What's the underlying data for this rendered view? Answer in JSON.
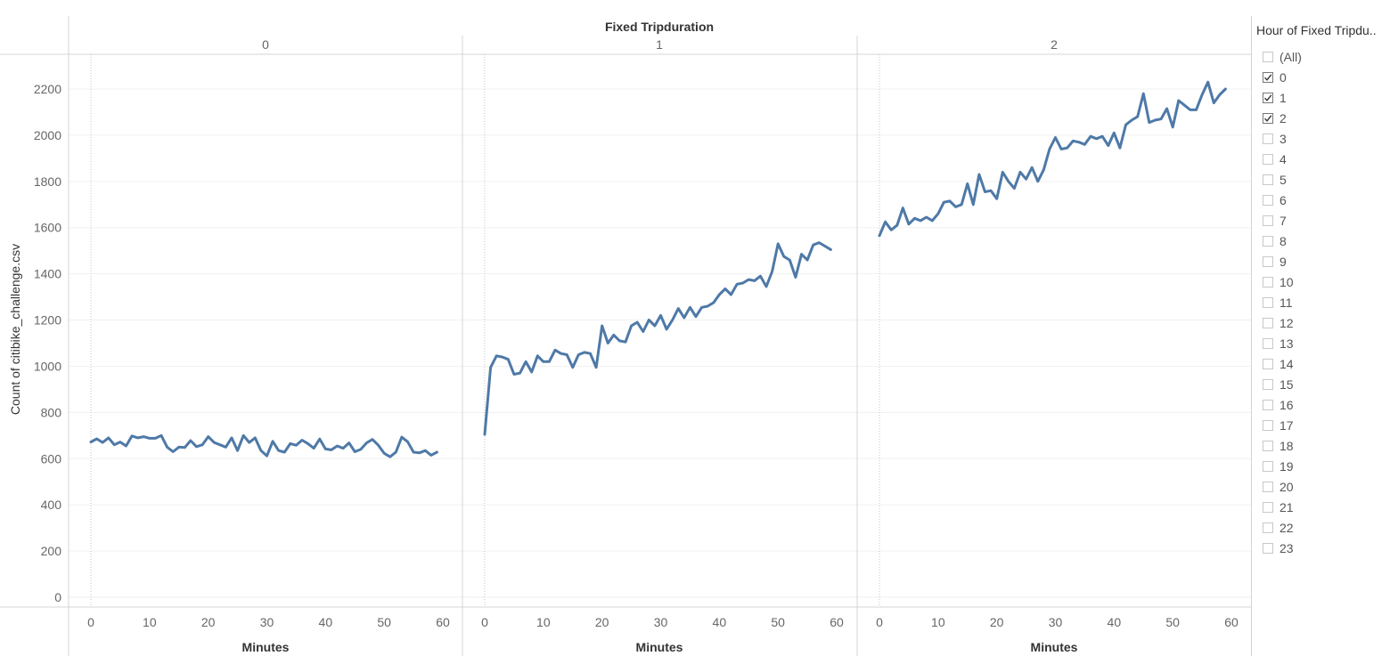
{
  "chart_data": {
    "type": "line",
    "column_header_title": "Fixed Tripduration",
    "ylabel": "Count of citibike_challenge.csv",
    "xlabel": "Minutes",
    "ylim": [
      0,
      2300
    ],
    "yticks": [
      0,
      200,
      400,
      600,
      800,
      1000,
      1200,
      1400,
      1600,
      1800,
      2000,
      2200
    ],
    "xlim": [
      -4,
      60
    ],
    "xticks": [
      0,
      10,
      20,
      30,
      40,
      50,
      60
    ],
    "line_color": "#4e79a7",
    "grid": true,
    "panels": [
      {
        "header": "0",
        "x": [
          0,
          1,
          2,
          3,
          4,
          5,
          6,
          7,
          8,
          9,
          10,
          11,
          12,
          13,
          14,
          15,
          16,
          17,
          18,
          19,
          20,
          21,
          22,
          23,
          24,
          25,
          26,
          27,
          28,
          29,
          30,
          31,
          32,
          33,
          34,
          35,
          36,
          37,
          38,
          39,
          40,
          41,
          42,
          43,
          44,
          45,
          46,
          47,
          48,
          49,
          50,
          51,
          52,
          53,
          54,
          55,
          56,
          57,
          58,
          59
        ],
        "y": [
          672,
          686,
          670,
          690,
          660,
          672,
          655,
          698,
          690,
          695,
          688,
          688,
          700,
          650,
          630,
          650,
          648,
          678,
          652,
          660,
          695,
          670,
          660,
          650,
          690,
          635,
          700,
          670,
          690,
          635,
          612,
          675,
          635,
          628,
          665,
          658,
          680,
          665,
          645,
          685,
          642,
          638,
          655,
          645,
          668,
          630,
          640,
          668,
          683,
          658,
          623,
          608,
          628,
          693,
          673,
          628,
          625,
          635,
          615,
          628
        ]
      },
      {
        "header": "1",
        "x": [
          0,
          1,
          2,
          3,
          4,
          5,
          6,
          7,
          8,
          9,
          10,
          11,
          12,
          13,
          14,
          15,
          16,
          17,
          18,
          19,
          20,
          21,
          22,
          23,
          24,
          25,
          26,
          27,
          28,
          29,
          30,
          31,
          32,
          33,
          34,
          35,
          36,
          37,
          38,
          39,
          40,
          41,
          42,
          43,
          44,
          45,
          46,
          47,
          48,
          49,
          50,
          51,
          52,
          53,
          54,
          55,
          56,
          57,
          58,
          59
        ],
        "y": [
          705,
          995,
          1045,
          1040,
          1030,
          965,
          970,
          1020,
          975,
          1045,
          1020,
          1020,
          1070,
          1055,
          1050,
          995,
          1050,
          1060,
          1055,
          995,
          1175,
          1100,
          1135,
          1110,
          1105,
          1175,
          1190,
          1150,
          1200,
          1175,
          1220,
          1160,
          1200,
          1250,
          1210,
          1255,
          1215,
          1255,
          1260,
          1275,
          1310,
          1335,
          1310,
          1355,
          1360,
          1375,
          1370,
          1390,
          1345,
          1410,
          1530,
          1475,
          1460,
          1385,
          1485,
          1460,
          1525,
          1535,
          1520,
          1505
        ]
      },
      {
        "header": "2",
        "x": [
          0,
          1,
          2,
          3,
          4,
          5,
          6,
          7,
          8,
          9,
          10,
          11,
          12,
          13,
          14,
          15,
          16,
          17,
          18,
          19,
          20,
          21,
          22,
          23,
          24,
          25,
          26,
          27,
          28,
          29,
          30,
          31,
          32,
          33,
          34,
          35,
          36,
          37,
          38,
          39,
          40,
          41,
          42,
          43,
          44,
          45,
          46,
          47,
          48,
          49,
          50,
          51,
          52,
          53,
          54,
          55,
          56,
          57,
          58,
          59
        ],
        "y": [
          1565,
          1625,
          1590,
          1610,
          1685,
          1615,
          1640,
          1630,
          1645,
          1630,
          1660,
          1710,
          1715,
          1690,
          1700,
          1790,
          1700,
          1830,
          1755,
          1760,
          1725,
          1840,
          1800,
          1770,
          1840,
          1810,
          1860,
          1800,
          1850,
          1940,
          1990,
          1940,
          1945,
          1975,
          1970,
          1960,
          1995,
          1985,
          1995,
          1955,
          2010,
          1945,
          2045,
          2065,
          2080,
          2180,
          2055,
          2065,
          2070,
          2115,
          2035,
          2150,
          2130,
          2110,
          2110,
          2175,
          2230,
          2140,
          2175,
          2200
        ]
      }
    ]
  },
  "legend": {
    "title": "Hour of Fixed Tripdu..",
    "items": [
      {
        "label": "(All)",
        "checked": false
      },
      {
        "label": "0",
        "checked": true
      },
      {
        "label": "1",
        "checked": true
      },
      {
        "label": "2",
        "checked": true
      },
      {
        "label": "3",
        "checked": false
      },
      {
        "label": "4",
        "checked": false
      },
      {
        "label": "5",
        "checked": false
      },
      {
        "label": "6",
        "checked": false
      },
      {
        "label": "7",
        "checked": false
      },
      {
        "label": "8",
        "checked": false
      },
      {
        "label": "9",
        "checked": false
      },
      {
        "label": "10",
        "checked": false
      },
      {
        "label": "11",
        "checked": false
      },
      {
        "label": "12",
        "checked": false
      },
      {
        "label": "13",
        "checked": false
      },
      {
        "label": "14",
        "checked": false
      },
      {
        "label": "15",
        "checked": false
      },
      {
        "label": "16",
        "checked": false
      },
      {
        "label": "17",
        "checked": false
      },
      {
        "label": "18",
        "checked": false
      },
      {
        "label": "19",
        "checked": false
      },
      {
        "label": "20",
        "checked": false
      },
      {
        "label": "21",
        "checked": false
      },
      {
        "label": "22",
        "checked": false
      },
      {
        "label": "23",
        "checked": false
      }
    ]
  }
}
